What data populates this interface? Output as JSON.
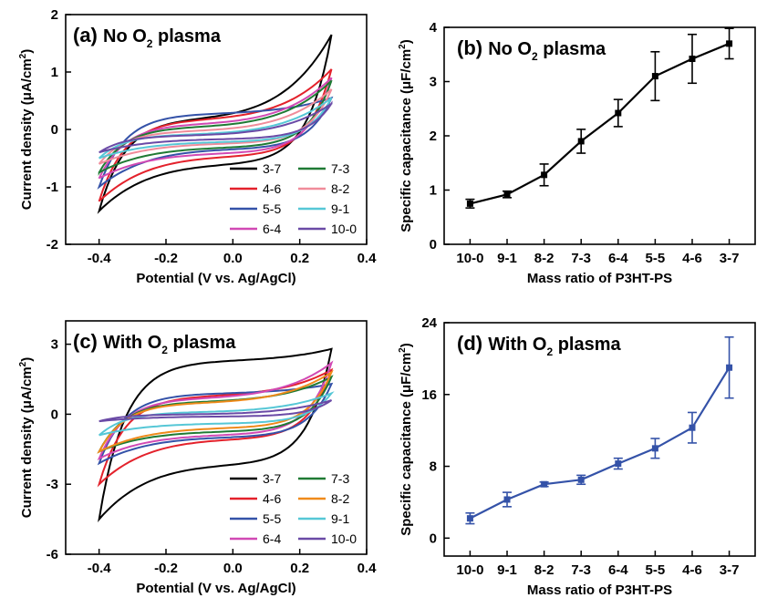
{
  "chart_data": [
    {
      "panel": "(a)",
      "type": "line",
      "title": "No O2 plasma",
      "title_main": "No O",
      "title_sub": "2",
      "title_rest": " plasma",
      "xlabel": "Potential (V vs. Ag/AgCl)",
      "ylabel": "Current density (μA/cm²)",
      "ylabel_main": "Current density (μA/cm",
      "ylabel_sup": "2",
      "ylabel_end": ")",
      "xlim": [
        -0.5,
        0.4
      ],
      "ylim": [
        -2,
        2
      ],
      "xticks": [
        -0.4,
        -0.2,
        0.0,
        0.2,
        0.4
      ],
      "xtick_labels": [
        "-0.4",
        "-0.2",
        "0.0",
        "0.2",
        "0.4"
      ],
      "yticks": [
        -2,
        -1,
        0,
        1,
        2
      ],
      "ytick_labels": [
        "-2",
        "-1",
        "0",
        "1",
        "2"
      ],
      "legend_position": "bottom-right",
      "series": [
        {
          "name": "3-7",
          "color": "#000000",
          "start": -1.42,
          "top_mid": 0.2,
          "top_end": 1.65,
          "bot_start": -1.42,
          "bot_mid": -0.62,
          "bot_end": -0.3
        },
        {
          "name": "4-6",
          "color": "#e3212b",
          "start": -1.25,
          "top_mid": 0.18,
          "top_end": 1.05,
          "bot_start": -1.25,
          "bot_mid": -0.48,
          "bot_end": -0.1
        },
        {
          "name": "5-5",
          "color": "#3452a8",
          "start": -1.0,
          "top_mid": 0.28,
          "top_end": 0.55,
          "bot_start": -1.0,
          "bot_mid": -0.35,
          "bot_end": 0.0
        },
        {
          "name": "6-4",
          "color": "#d149b4",
          "start": -0.85,
          "top_mid": 0.1,
          "top_end": 0.9,
          "bot_start": -0.85,
          "bot_mid": -0.42,
          "bot_end": -0.05
        },
        {
          "name": "7-3",
          "color": "#1f7a34",
          "start": -0.75,
          "top_mid": 0.05,
          "top_end": 0.85,
          "bot_start": -0.75,
          "bot_mid": -0.32,
          "bot_end": 0.05
        },
        {
          "name": "8-2",
          "color": "#f08c9a",
          "start": -0.6,
          "top_mid": -0.02,
          "top_end": 0.7,
          "bot_start": -0.6,
          "bot_mid": -0.25,
          "bot_end": 0.1
        },
        {
          "name": "9-1",
          "color": "#56c7d6",
          "start": -0.5,
          "top_mid": -0.08,
          "top_end": 0.55,
          "bot_start": -0.5,
          "bot_mid": -0.22,
          "bot_end": 0.15
        },
        {
          "name": "10-0",
          "color": "#6a4aa6",
          "start": -0.4,
          "top_mid": -0.1,
          "top_end": 0.45,
          "bot_start": -0.4,
          "bot_mid": -0.17,
          "bot_end": 0.2
        }
      ]
    },
    {
      "panel": "(b)",
      "type": "line",
      "title": "No O2 plasma",
      "title_main": "No O",
      "title_sub": "2",
      "title_rest": " plasma",
      "xlabel": "Mass ratio of P3HT-PS",
      "ylabel": "Specific capacitance (μF/cm²)",
      "ylabel_main": "Specific capacitance (μF/cm",
      "ylabel_sup": "2",
      "ylabel_end": ")",
      "categories": [
        "10-0",
        "9-1",
        "8-2",
        "7-3",
        "6-4",
        "5-5",
        "4-6",
        "3-7"
      ],
      "values": [
        0.75,
        0.92,
        1.28,
        1.9,
        2.42,
        3.1,
        3.42,
        3.7
      ],
      "errors": [
        0.08,
        0.06,
        0.2,
        0.22,
        0.25,
        0.45,
        0.45,
        0.28
      ],
      "ylim": [
        0,
        4
      ],
      "yticks": [
        0,
        1,
        2,
        3,
        4
      ],
      "ytick_labels": [
        "0",
        "1",
        "2",
        "3",
        "4"
      ],
      "color": "#000000"
    },
    {
      "panel": "(c)",
      "type": "line",
      "title": "With O2 plasma",
      "title_main": "With O",
      "title_sub": "2",
      "title_rest": " plasma",
      "xlabel": "Potential (V vs. Ag/AgCl)",
      "ylabel": "Current density (μA/cm²)",
      "ylabel_main": "Current density (μA/cm",
      "ylabel_sup": "2",
      "ylabel_end": ")",
      "xlim": [
        -0.5,
        0.4
      ],
      "ylim": [
        -6,
        4
      ],
      "xticks": [
        -0.4,
        -0.2,
        0.0,
        0.2,
        0.4
      ],
      "xtick_labels": [
        "-0.4",
        "-0.2",
        "0.0",
        "0.2",
        "0.4"
      ],
      "yticks": [
        -6,
        -3,
        0,
        3
      ],
      "ytick_labels": [
        "-6",
        "-3",
        "0",
        "3"
      ],
      "legend_position": "bottom-right",
      "series": [
        {
          "name": "3-7",
          "color": "#000000",
          "start": -4.5,
          "top_mid": 2.3,
          "top_end": 2.8,
          "bot_start": -4.5,
          "bot_mid": -2.2,
          "bot_end": -1.0
        },
        {
          "name": "4-6",
          "color": "#e3212b",
          "start": -3.0,
          "top_mid": 0.8,
          "top_end": 1.9,
          "bot_start": -3.0,
          "bot_mid": -1.1,
          "bot_end": -0.2
        },
        {
          "name": "5-5",
          "color": "#3452a8",
          "start": -2.1,
          "top_mid": 0.9,
          "top_end": 1.3,
          "bot_start": -2.1,
          "bot_mid": -1.0,
          "bot_end": -0.2
        },
        {
          "name": "6-4",
          "color": "#d149b4",
          "start": -1.9,
          "top_mid": 0.7,
          "top_end": 2.2,
          "bot_start": -1.9,
          "bot_mid": -0.9,
          "bot_end": 0.0
        },
        {
          "name": "7-3",
          "color": "#1f7a34",
          "start": -1.6,
          "top_mid": 0.55,
          "top_end": 1.6,
          "bot_start": -1.6,
          "bot_mid": -0.75,
          "bot_end": 0.1
        },
        {
          "name": "8-2",
          "color": "#ef8a1a",
          "start": -1.6,
          "top_mid": 0.5,
          "top_end": 1.8,
          "bot_start": -1.6,
          "bot_mid": -0.6,
          "bot_end": 0.1
        },
        {
          "name": "9-1",
          "color": "#56c7d6",
          "start": -0.9,
          "top_mid": 0.1,
          "top_end": 0.9,
          "bot_start": -0.9,
          "bot_mid": -0.4,
          "bot_end": 0.2
        },
        {
          "name": "10-0",
          "color": "#6a4aa6",
          "start": -0.3,
          "top_mid": 0.0,
          "top_end": 0.6,
          "bot_start": -0.3,
          "bot_mid": -0.1,
          "bot_end": 0.3
        }
      ]
    },
    {
      "panel": "(d)",
      "type": "line",
      "title": "With O2 plasma",
      "title_main": "With O",
      "title_sub": "2",
      "title_rest": " plasma",
      "xlabel": "Mass ratio of P3HT-PS",
      "ylabel": "Specific capacitance (μF/cm²)",
      "ylabel_main": "Specific capacitance (μF/cm",
      "ylabel_sup": "2",
      "ylabel_end": ")",
      "categories": [
        "10-0",
        "9-1",
        "8-2",
        "7-3",
        "6-4",
        "5-5",
        "4-6",
        "3-7"
      ],
      "values": [
        2.2,
        4.3,
        6.0,
        6.5,
        8.3,
        10.0,
        12.3,
        19.0
      ],
      "errors": [
        0.6,
        0.8,
        0.25,
        0.5,
        0.6,
        1.1,
        1.7,
        3.4
      ],
      "ylim": [
        -2,
        24
      ],
      "yticks": [
        0,
        8,
        16,
        24
      ],
      "ytick_labels": [
        "0",
        "8",
        "16",
        "24"
      ],
      "color": "#3452a8"
    }
  ]
}
